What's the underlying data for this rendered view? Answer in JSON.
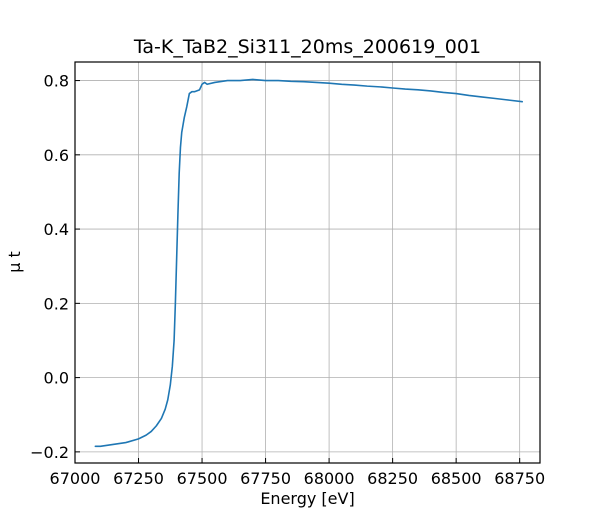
{
  "chart_data": {
    "type": "line",
    "title": "Ta-K_TaB2_Si311_20ms_200619_001",
    "xlabel": "Energy [eV]",
    "ylabel": "μ t",
    "xlim": [
      67000,
      68830
    ],
    "ylim": [
      -0.23,
      0.85
    ],
    "grid": true,
    "x_ticks": [
      67000,
      67250,
      67500,
      67750,
      68000,
      68250,
      68500,
      68750
    ],
    "y_ticks": [
      -0.2,
      0.0,
      0.2,
      0.4,
      0.6,
      0.8
    ],
    "x_tick_labels": [
      "67000",
      "67250",
      "67500",
      "67750",
      "68000",
      "68250",
      "68500",
      "68750"
    ],
    "y_tick_labels": [
      "−0.2",
      "0.0",
      "0.2",
      "0.4",
      "0.6",
      "0.8"
    ],
    "series": [
      {
        "name": "",
        "color": "#1f77b4",
        "x": [
          67080,
          67100,
          67150,
          67200,
          67250,
          67280,
          67300,
          67320,
          67340,
          67355,
          67365,
          67375,
          67383,
          67390,
          67395,
          67400,
          67405,
          67410,
          67415,
          67420,
          67425,
          67430,
          67440,
          67450,
          67460,
          67470,
          67490,
          67500,
          67510,
          67520,
          67550,
          67600,
          67650,
          67700,
          67750,
          67800,
          67850,
          67900,
          67950,
          68000,
          68050,
          68100,
          68150,
          68200,
          68250,
          68300,
          68350,
          68400,
          68450,
          68500,
          68550,
          68600,
          68650,
          68700,
          68760
        ],
        "y": [
          -0.185,
          -0.185,
          -0.18,
          -0.175,
          -0.165,
          -0.155,
          -0.145,
          -0.13,
          -0.11,
          -0.085,
          -0.06,
          -0.02,
          0.03,
          0.1,
          0.2,
          0.32,
          0.44,
          0.55,
          0.62,
          0.66,
          0.68,
          0.7,
          0.73,
          0.765,
          0.77,
          0.77,
          0.775,
          0.79,
          0.795,
          0.79,
          0.795,
          0.8,
          0.8,
          0.803,
          0.8,
          0.8,
          0.798,
          0.797,
          0.795,
          0.793,
          0.79,
          0.788,
          0.785,
          0.783,
          0.78,
          0.777,
          0.775,
          0.772,
          0.768,
          0.765,
          0.76,
          0.756,
          0.752,
          0.748,
          0.743
        ]
      }
    ]
  }
}
